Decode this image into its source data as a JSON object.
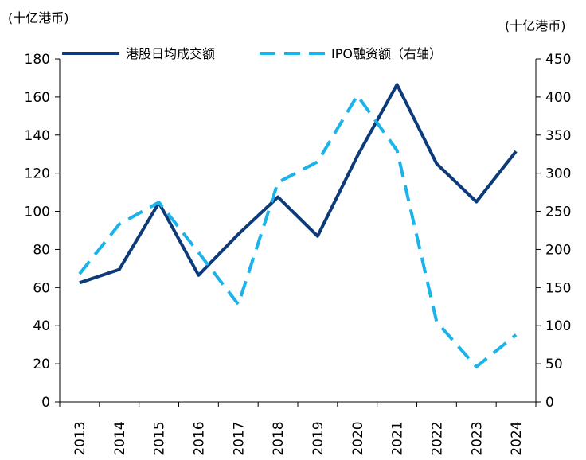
{
  "chart_data": {
    "type": "line",
    "x": [
      "2013",
      "2014",
      "2015",
      "2016",
      "2017",
      "2018",
      "2019",
      "2020",
      "2021",
      "2022",
      "2023",
      "2024"
    ],
    "left_axis": {
      "unit": "(十亿港币)",
      "ylim": [
        0,
        180
      ],
      "ticks": [
        "0",
        "20",
        "40",
        "60",
        "80",
        "100",
        "120",
        "140",
        "160",
        "180"
      ]
    },
    "right_axis": {
      "unit": "(十亿港币)",
      "ylim": [
        0,
        450
      ],
      "ticks": [
        "0",
        "50",
        "100",
        "150",
        "200",
        "250",
        "300",
        "350",
        "400",
        "450"
      ]
    },
    "series": [
      {
        "name": "港股日均成交额",
        "axis": "left",
        "color": "#0d3b7a",
        "dash": "solid",
        "values": [
          62.5,
          69.5,
          104.5,
          66.5,
          88,
          107.5,
          87,
          129,
          166.5,
          125,
          105,
          131.5
        ]
      },
      {
        "name": "IPO融资额（右轴）",
        "axis": "right",
        "color": "#1ab3ea",
        "dash": "dashed",
        "values": [
          168,
          233,
          262,
          196,
          128,
          288,
          315,
          402,
          330,
          105,
          46,
          88
        ]
      }
    ],
    "legend_position": "top",
    "grid": false
  }
}
